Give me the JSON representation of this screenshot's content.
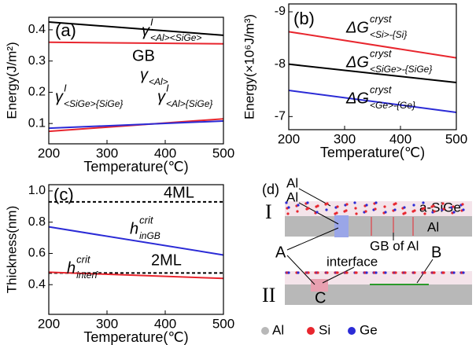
{
  "chart_data": [
    {
      "type": "line",
      "panel_label": "(a)",
      "xlabel": "Temperature(℃)",
      "ylabel": "Energy(J/m²)",
      "x": [
        200,
        500
      ],
      "xlim": [
        200,
        500
      ],
      "xticks": [
        200,
        300,
        400,
        500
      ],
      "ylim": [
        0.035,
        0.44
      ],
      "yticks": [
        0.1,
        0.2,
        0.3,
        0.4
      ],
      "series": [
        {
          "color": "#000000",
          "values": [
            0.425,
            0.3825
          ]
        },
        {
          "color": "#e8262e",
          "values": [
            0.36,
            0.355
          ]
        },
        {
          "color": "#e8262e",
          "values": [
            0.075,
            0.115
          ]
        },
        {
          "color": "#2b2bd6",
          "values": [
            0.085,
            0.108
          ]
        }
      ],
      "annotations": [
        {
          "base": "γ",
          "sup": "I",
          "sub": "<Al><SiGe>"
        },
        {
          "text": "GB"
        },
        {
          "base": "γ",
          "sub": "<Al>"
        },
        {
          "base": "γ",
          "sup": "I",
          "sub": "<SiGe>{SiGe}"
        },
        {
          "base": "γ",
          "sup": "I",
          "sub": "<Al>{SiGe}"
        }
      ]
    },
    {
      "type": "line",
      "panel_label": "(b)",
      "xlabel": "Temperature(℃)",
      "ylabel": "Energy(×10⁶J/m³)",
      "x": [
        200,
        500
      ],
      "xlim": [
        200,
        500
      ],
      "xticks": [
        200,
        300,
        400,
        500
      ],
      "ylim": [
        -9.15,
        -6.75
      ],
      "y_inverted": true,
      "yticks": [
        -9,
        -8,
        -7
      ],
      "series": [
        {
          "color": "#e8262e",
          "values": [
            -8.62,
            -8.12
          ]
        },
        {
          "color": "#000000",
          "values": [
            -8.0,
            -7.65
          ]
        },
        {
          "color": "#2b2bd6",
          "values": [
            -7.5,
            -7.08
          ]
        }
      ],
      "annotations": [
        {
          "base": "ΔG",
          "sup": "cryst",
          "sub": "<Si>-{Si}"
        },
        {
          "base": "ΔG",
          "sup": "cryst",
          "sub": "<SiGe>-{SiGe}"
        },
        {
          "base": "ΔG",
          "sup": "cryst",
          "sub": "<Ge>-{Ge}"
        }
      ]
    },
    {
      "type": "line",
      "panel_label": "(c)",
      "xlabel": "Temperature(℃)",
      "ylabel": "Thickness(nm)",
      "x": [
        200,
        500
      ],
      "xlim": [
        200,
        500
      ],
      "xticks": [
        200,
        300,
        400,
        500
      ],
      "ylim": [
        0.21,
        1.04
      ],
      "yticks": [
        0.4,
        0.6,
        0.8,
        {
          "value": 1,
          "label": "1.0"
        }
      ],
      "series": [
        {
          "color": "#000000",
          "dashed": true,
          "values": [
            0.93,
            0.93
          ]
        },
        {
          "color": "#000000",
          "dashed": true,
          "values": [
            0.475,
            0.475
          ]
        },
        {
          "color": "#2b2bd6",
          "values": [
            0.77,
            0.59
          ]
        },
        {
          "color": "#e8262e",
          "values": [
            0.48,
            0.44
          ]
        }
      ],
      "annotations": [
        {
          "text": "4ML"
        },
        {
          "base": "h",
          "sup": "crit",
          "sub": "inGB"
        },
        {
          "base": "h",
          "sup": "crit",
          "sub": "interf"
        },
        {
          "text": "2ML"
        }
      ]
    }
  ],
  "diagram": {
    "panel_label": "(d)",
    "row_labels": [
      "I",
      "II"
    ],
    "labels": [
      "Al",
      "Al",
      "a-SiGe",
      "Al",
      "GB of Al",
      "A",
      "interface",
      "B",
      "C"
    ],
    "legend": [
      "Al",
      "Si",
      "Ge"
    ]
  }
}
